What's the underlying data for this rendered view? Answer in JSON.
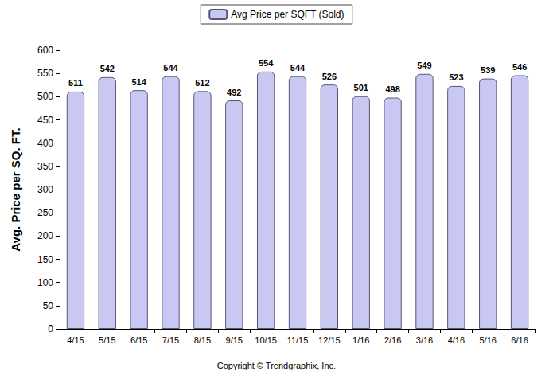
{
  "chart_data": {
    "type": "bar",
    "series": [
      {
        "name": "Avg Price per SQFT (Sold)",
        "color": "#c8c8f2",
        "values": [
          511,
          542,
          514,
          544,
          512,
          492,
          554,
          544,
          526,
          501,
          498,
          549,
          523,
          539,
          546
        ]
      }
    ],
    "categories": [
      "4/15",
      "5/15",
      "6/15",
      "7/15",
      "8/15",
      "9/15",
      "10/15",
      "11/15",
      "12/15",
      "1/16",
      "2/16",
      "3/16",
      "4/16",
      "5/16",
      "6/16"
    ],
    "y_label": "Avg. Price per SQ. FT.",
    "annotations": [
      "Copyright © Trendgraphix, Inc."
    ],
    "ylim": [
      0,
      600
    ],
    "yticks": [
      0,
      50,
      100,
      150,
      200,
      250,
      300,
      350,
      400,
      450,
      500,
      550,
      600
    ],
    "grid": false,
    "legend": "top",
    "data_labels": true
  }
}
